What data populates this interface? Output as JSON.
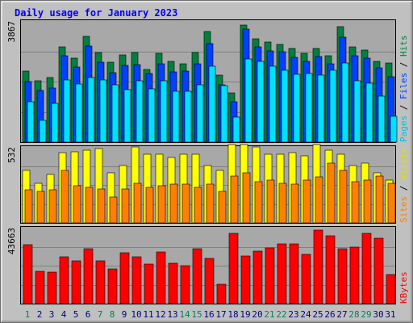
{
  "chart_data": {
    "type": "bar",
    "title": "Daily usage for January 2023",
    "categories": [
      "1",
      "2",
      "3",
      "4",
      "5",
      "6",
      "7",
      "8",
      "9",
      "10",
      "11",
      "12",
      "13",
      "14",
      "15",
      "16",
      "17",
      "18",
      "19",
      "20",
      "21",
      "22",
      "23",
      "24",
      "25",
      "26",
      "27",
      "28",
      "29",
      "30",
      "31"
    ],
    "weekend_days": [
      "1",
      "7",
      "8",
      "14",
      "15",
      "21",
      "22",
      "28",
      "29"
    ],
    "colors": {
      "hits": "#008040",
      "files": "#0040ff",
      "pages": "#00e0ff",
      "visits": "#ffff00",
      "sites": "#ff8000",
      "kbytes": "#ff0000",
      "title": "#0000ff",
      "weekday_label": "#000080",
      "weekend_label": "#00805c",
      "background": "#c0c0c0",
      "plot_background": "#a8a8a8"
    },
    "panels": [
      {
        "id": "hits_files_pages",
        "ymax_label": "3867",
        "ymax": 3867,
        "legend": [
          {
            "text": "Pages",
            "color": "#00e0ff"
          },
          {
            "text": "Files",
            "color": "#0040ff"
          },
          {
            "text": "Hits",
            "color": "#008040"
          }
        ],
        "series": [
          {
            "name": "Hits",
            "values": [
              2270,
              1950,
              2050,
              3040,
              2690,
              3380,
              2870,
              2540,
              2780,
              2850,
              2330,
              2840,
              2570,
              2500,
              2870,
              3530,
              2130,
              1580,
              3750,
              3290,
              3190,
              3110,
              3000,
              2840,
              3000,
              2770,
              3680,
              3050,
              2940,
              2590,
              2530
            ]
          },
          {
            "name": "Files",
            "values": [
              1940,
              1640,
              1730,
              2770,
              2390,
              3060,
              2540,
              2220,
              2440,
              2480,
              2200,
              2500,
              2250,
              2260,
              2500,
              3150,
              1840,
              1300,
              3600,
              3040,
              2920,
              2890,
              2700,
              2580,
              2730,
              2500,
              3340,
              2750,
              2690,
              2380,
              2100
            ]
          },
          {
            "name": "Pages",
            "values": [
              1290,
              700,
              1240,
              1990,
              1850,
              2050,
              1990,
              1840,
              1670,
              1950,
              1700,
              1970,
              1620,
              1620,
              1820,
              2430,
              1810,
              800,
              2650,
              2570,
              2430,
              2300,
              2170,
              2180,
              2150,
              2290,
              2520,
              1950,
              1870,
              1470,
              830
            ]
          }
        ]
      },
      {
        "id": "visits_sites",
        "ymax_label": "532",
        "ymax": 532,
        "legend": [
          {
            "text": "Sites",
            "color": "#ff8000"
          },
          {
            "text": "Visits",
            "color": "#ffff00"
          }
        ],
        "series": [
          {
            "name": "Visits",
            "values": [
              370,
              280,
              340,
              490,
              500,
              510,
              520,
              350,
              400,
              530,
              480,
              480,
              460,
              480,
              480,
              400,
              370,
              550,
              550,
              530,
              480,
              480,
              490,
              470,
              550,
              510,
              480,
              400,
              420,
              350,
              300
            ]
          },
          {
            "name": "Sites",
            "values": [
              230,
              220,
              230,
              370,
              260,
              250,
              240,
              180,
              240,
              280,
              250,
              260,
              270,
              270,
              250,
              270,
              220,
              330,
              350,
              290,
              300,
              280,
              270,
              300,
              320,
              420,
              370,
              290,
              300,
              330,
              280
            ]
          }
        ]
      },
      {
        "id": "kbytes",
        "ymax_label": "43663",
        "ymax": 43663,
        "legend": [
          {
            "text": "KBytes",
            "color": "#ff0000"
          }
        ],
        "series": [
          {
            "name": "KBytes",
            "values": [
              34000,
              18500,
              18200,
              27000,
              24400,
              31800,
              24600,
              20000,
              29400,
              26900,
              22900,
              29800,
              23000,
              22000,
              31400,
              26000,
              11000,
              40300,
              27600,
              30300,
              32200,
              34400,
              34400,
              28200,
              42400,
              39200,
              31800,
              32300,
              40400,
              37700,
              16800
            ]
          }
        ]
      }
    ]
  }
}
